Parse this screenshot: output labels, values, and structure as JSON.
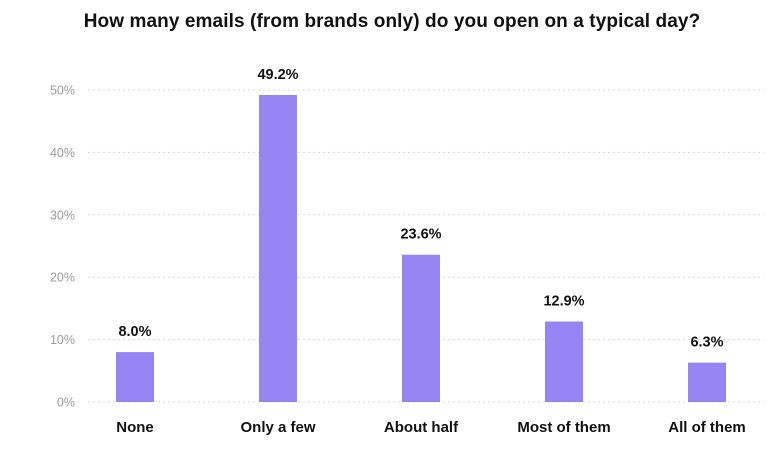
{
  "chart_data": {
    "type": "bar",
    "title": "How many emails (from brands only) do you open on a typical day?",
    "categories": [
      "None",
      "Only a few",
      "About half",
      "Most of them",
      "All of them"
    ],
    "values": [
      8.0,
      49.2,
      23.6,
      12.9,
      6.3
    ],
    "value_labels": [
      "8.0%",
      "49.2%",
      "23.6%",
      "12.9%",
      "6.3%"
    ],
    "ylim": [
      0,
      50
    ],
    "yticks": [
      0,
      10,
      20,
      30,
      40,
      50
    ],
    "ytick_labels": [
      "0%",
      "10%",
      "20%",
      "30%",
      "40%",
      "50%"
    ],
    "xlabel": "",
    "ylabel": "",
    "grid": true,
    "bar_color": "#9584f2"
  }
}
